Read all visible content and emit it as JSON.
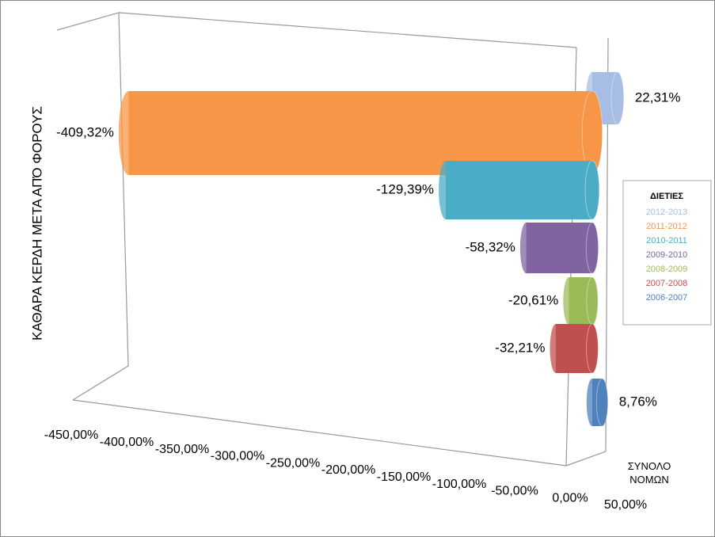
{
  "chart_data": {
    "type": "bar3d",
    "y_axis_title": "ΚΑΘΑΡΑ ΚΕΡΔΗ ΜΕΤΑ ΑΠΌ ΦΟΡΟΥΣ",
    "categories": [
      "ΣΥΝΟΛΟ ΝΟΜΩΝ"
    ],
    "legend_title": "ΔΙΕΤΙΕΣ",
    "legend": "right",
    "xlim": [
      -450,
      50
    ],
    "xticks": [
      {
        "value": -450,
        "label": "-450,00%"
      },
      {
        "value": -400,
        "label": "-400,00%"
      },
      {
        "value": -350,
        "label": "-350,00%"
      },
      {
        "value": -300,
        "label": "-300,00%"
      },
      {
        "value": -250,
        "label": "-250,00%"
      },
      {
        "value": -200,
        "label": "-200,00%"
      },
      {
        "value": -150,
        "label": "-150,00%"
      },
      {
        "value": -100,
        "label": "-100,00%"
      },
      {
        "value": -50,
        "label": "-50,00%"
      },
      {
        "value": 0,
        "label": "0,00%"
      },
      {
        "value": 50,
        "label": "50,00%"
      }
    ],
    "series": [
      {
        "name": "2012-2013",
        "color": "#a7bde3",
        "values": [
          22.31
        ],
        "value_labels": [
          "22,31%"
        ]
      },
      {
        "name": "2011-2012",
        "color": "#f79646",
        "values": [
          -409.32
        ],
        "value_labels": [
          "-409,32%"
        ]
      },
      {
        "name": "2010-2011",
        "color": "#4bacc6",
        "values": [
          -129.39
        ],
        "value_labels": [
          "-129,39%"
        ]
      },
      {
        "name": "2009-2010",
        "color": "#8064a2",
        "values": [
          -58.32
        ],
        "value_labels": [
          "-58,32%"
        ]
      },
      {
        "name": "2008-2009",
        "color": "#9bbb59",
        "values": [
          -20.61
        ],
        "value_labels": [
          "-20,61%"
        ]
      },
      {
        "name": "2007-2008",
        "color": "#c0504d",
        "values": [
          -32.21
        ],
        "value_labels": [
          "-32,21%"
        ]
      },
      {
        "name": "2006-2007",
        "color": "#4f81bd",
        "values": [
          8.76
        ],
        "value_labels": [
          "8,76%"
        ]
      }
    ]
  }
}
